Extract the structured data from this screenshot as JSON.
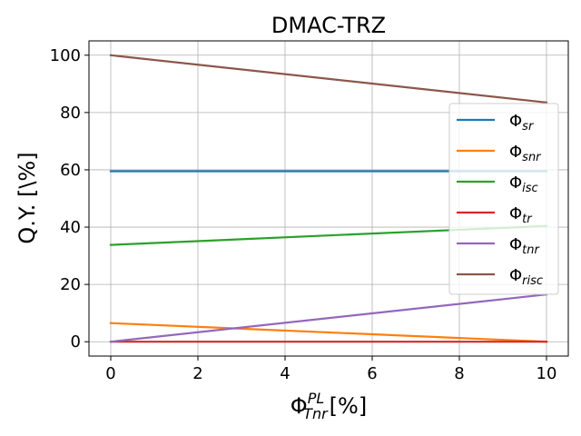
{
  "chart_data": {
    "type": "line",
    "title": "DMAC-TRZ",
    "xlabel_main": "Φ",
    "xlabel_sup": "PL",
    "xlabel_sub": "Tnr",
    "xlabel_suffix": "[%]",
    "ylabel": "Q.Y. [\\%]",
    "xlim": [
      -0.5,
      10.5
    ],
    "ylim": [
      -5,
      105
    ],
    "xticks": [
      0,
      2,
      4,
      6,
      8,
      10
    ],
    "yticks": [
      0,
      20,
      40,
      60,
      80,
      100
    ],
    "grid": true,
    "legend_position": "right",
    "x": [
      0,
      10
    ],
    "series": [
      {
        "name": "Φsr",
        "symbol": "Φ",
        "subscript": "sr",
        "color": "#1f77b4",
        "values": [
          59.5,
          59.5
        ]
      },
      {
        "name": "Φsnr",
        "symbol": "Φ",
        "subscript": "snr",
        "color": "#ff7f0e",
        "values": [
          6.5,
          0.0
        ]
      },
      {
        "name": "Φisc",
        "symbol": "Φ",
        "subscript": "isc",
        "color": "#2ca02c",
        "values": [
          33.8,
          40.4
        ]
      },
      {
        "name": "Φtr",
        "symbol": "Φ",
        "subscript": "tr",
        "color": "#d62728",
        "values": [
          0.0,
          0.0
        ]
      },
      {
        "name": "Φtnr",
        "symbol": "Φ",
        "subscript": "tnr",
        "color": "#9467bd",
        "values": [
          0.0,
          16.5
        ]
      },
      {
        "name": "Φrisc",
        "symbol": "Φ",
        "subscript": "risc",
        "color": "#8c564b",
        "values": [
          100.0,
          83.5
        ]
      }
    ]
  }
}
